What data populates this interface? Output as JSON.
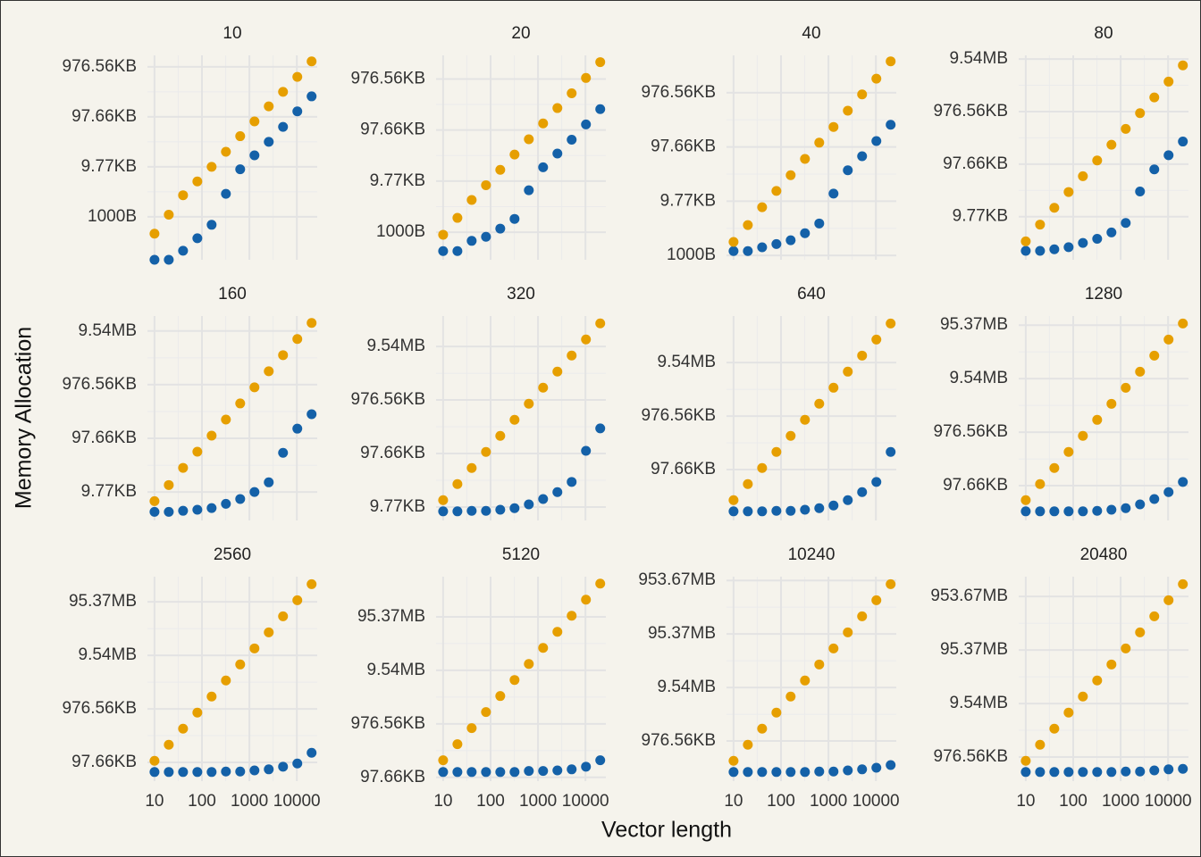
{
  "chart_data": {
    "type": "scatter",
    "x_label": "Vector length",
    "y_label": "Memory Allocation",
    "xlog": true,
    "ylog": true,
    "grid": true,
    "minor_grid": true,
    "x": [
      10,
      20,
      40,
      80,
      160,
      320,
      640,
      1280,
      2560,
      5120,
      10240,
      20480
    ],
    "xlim": [
      7.1,
      26900
    ],
    "xticks": [
      10,
      100,
      1000,
      10000
    ],
    "panels": [
      {
        "title": "10",
        "ylim": [
          138,
          1700000
        ],
        "yticks": [
          {
            "value": 1000,
            "label": "1000B"
          },
          {
            "value": 10000,
            "label": "9.77KB"
          },
          {
            "value": 100000,
            "label": "97.66KB"
          },
          {
            "value": 1000000,
            "label": "976.56KB"
          }
        ],
        "series": [
          {
            "color": "#e69f00",
            "values": [
              460,
              1100,
              2700,
              5100,
              10000,
              20000,
              41000,
              81000,
              162000,
              316000,
              631000,
              1290000
            ]
          },
          {
            "color": "#1461a8",
            "values": [
              138,
              138,
              209,
              372,
              692,
              2884,
              8913,
              16982,
              31623,
              63096,
              128825,
              257040
            ]
          }
        ]
      },
      {
        "title": "20",
        "ylim": [
          288,
          2900000
        ],
        "yticks": [
          {
            "value": 1000,
            "label": "1000B"
          },
          {
            "value": 10000,
            "label": "9.77KB"
          },
          {
            "value": 100000,
            "label": "97.66KB"
          },
          {
            "value": 1000000,
            "label": "976.56KB"
          }
        ],
        "series": [
          {
            "color": "#e69f00",
            "values": [
              891,
              1905,
              4266,
              8318,
              16596,
              33113,
              66069,
              134896,
              269153,
              524807,
              1047129,
              2137962
            ]
          },
          {
            "color": "#1461a8",
            "values": [
              427,
              427,
              676,
              813,
              1175,
              1820,
              6607,
              18621,
              34674,
              64565,
              128825,
              257040
            ]
          }
        ]
      },
      {
        "title": "40",
        "ylim": [
          832,
          4900000
        ],
        "yticks": [
          {
            "value": 1000,
            "label": "1000B"
          },
          {
            "value": 10000,
            "label": "9.77KB"
          },
          {
            "value": 100000,
            "label": "97.66KB"
          },
          {
            "value": 1000000,
            "label": "976.56KB"
          }
        ],
        "series": [
          {
            "color": "#e69f00",
            "values": [
              1778,
              3631,
              7762,
              15488,
              30200,
              60256,
              120226,
              234423,
              467735,
              933254,
              1819701,
              3801894
            ]
          },
          {
            "color": "#1461a8",
            "values": [
              1202,
              1202,
              1413,
              1622,
              1905,
              2570,
              3890,
              13804,
              37154,
              67608,
              128825,
              257040
            ]
          }
        ]
      },
      {
        "title": "80",
        "ylim": [
          1514,
          11750000
        ],
        "yticks": [
          {
            "value": 10000,
            "label": "9.77KB"
          },
          {
            "value": 100000,
            "label": "97.66KB"
          },
          {
            "value": 1000000,
            "label": "976.56KB"
          },
          {
            "value": 10000000,
            "label": "9.54MB"
          }
        ],
        "series": [
          {
            "color": "#e69f00",
            "values": [
              3388,
              7079,
              14791,
              29512,
              58884,
              117490,
              234423,
              467735,
              933254,
              1862087,
              3715352,
              7585776
            ]
          },
          {
            "color": "#1461a8",
            "values": [
              2239,
              2239,
              2399,
              2630,
              3162,
              3802,
              5012,
              7586,
              30200,
              79433,
              147911,
              269153
            ]
          }
        ]
      },
      {
        "title": "160",
        "ylim": [
          2951,
          19000000
        ],
        "yticks": [
          {
            "value": 10000,
            "label": "9.77KB"
          },
          {
            "value": 100000,
            "label": "97.66KB"
          },
          {
            "value": 1000000,
            "label": "976.56KB"
          },
          {
            "value": 10000000,
            "label": "9.54MB"
          }
        ],
        "series": [
          {
            "color": "#e69f00",
            "values": [
              6761,
              13490,
              28184,
              56234,
              112202,
              223872,
              446684,
              891251,
              1778279,
              3548134,
              7079458,
              14125375
            ]
          },
          {
            "color": "#1461a8",
            "values": [
              4266,
              4266,
              4467,
              4677,
              5012,
              6026,
              7413,
              10000,
              15136,
              53703,
              151356,
              281838
            ]
          }
        ]
      },
      {
        "title": "320",
        "ylim": [
          5623,
          37000000
        ],
        "yticks": [
          {
            "value": 10000,
            "label": "9.77KB"
          },
          {
            "value": 100000,
            "label": "97.66KB"
          },
          {
            "value": 1000000,
            "label": "976.56KB"
          },
          {
            "value": 10000000,
            "label": "9.54MB"
          }
        ],
        "series": [
          {
            "color": "#e69f00",
            "values": [
              13490,
              26915,
              53703,
              107152,
              213796,
              426580,
              851138,
              1698244,
              3388442,
              6760830,
              13489629,
              26915348
            ]
          },
          {
            "color": "#1461a8",
            "values": [
              8318,
              8318,
              8511,
              8511,
              8913,
              9550,
              11220,
              14125,
              19055,
              29512,
              112202,
              295121
            ]
          }
        ]
      },
      {
        "title": "640",
        "ylim": [
          11220,
          74000000
        ],
        "yticks": [
          {
            "value": 100000,
            "label": "97.66KB"
          },
          {
            "value": 1000000,
            "label": "976.56KB"
          },
          {
            "value": 10000000,
            "label": "9.54MB"
          }
        ],
        "series": [
          {
            "color": "#e69f00",
            "values": [
              26915,
              53703,
              107152,
              213796,
              426580,
              851138,
              1698244,
              3388442,
              6760830,
              13489629,
              26915348,
              53703180
            ]
          },
          {
            "color": "#1461a8",
            "values": [
              16596,
              16596,
              16596,
              16982,
              16982,
              17783,
              19055,
              21380,
              26915,
              38019,
              58884,
              213796
            ]
          }
        ]
      },
      {
        "title": "1280",
        "ylim": [
          22387,
          148000000
        ],
        "yticks": [
          {
            "value": 100000,
            "label": "97.66KB"
          },
          {
            "value": 1000000,
            "label": "976.56KB"
          },
          {
            "value": 10000000,
            "label": "9.54MB"
          },
          {
            "value": 100000000,
            "label": "95.37MB"
          }
        ],
        "series": [
          {
            "color": "#e69f00",
            "values": [
              53703,
              107152,
              213796,
              426580,
              851138,
              1698244,
              3388442,
              6760830,
              13489629,
              26915348,
              53703180,
              107151931
            ]
          },
          {
            "color": "#1461a8",
            "values": [
              33113,
              33113,
              33113,
              33113,
              33113,
              33884,
              35481,
              38019,
              44668,
              56234,
              75858,
              117490
            ]
          }
        ]
      },
      {
        "title": "2560",
        "ylim": [
          44668,
          295000000
        ],
        "yticks": [
          {
            "value": 100000,
            "label": "97.66KB"
          },
          {
            "value": 1000000,
            "label": "976.56KB"
          },
          {
            "value": 10000000,
            "label": "9.54MB"
          },
          {
            "value": 100000000,
            "label": "95.37MB"
          }
        ],
        "series": [
          {
            "color": "#e69f00",
            "values": [
              107152,
              213796,
              426580,
              851138,
              1698244,
              3388442,
              6760830,
              13489629,
              26915348,
              53703180,
              107151931,
              213796209
            ]
          },
          {
            "color": "#1461a8",
            "values": [
              66069,
              66069,
              66069,
              66069,
              66069,
              67608,
              67608,
              70795,
              74131,
              83176,
              95499,
              151356
            ]
          }
        ]
      },
      {
        "title": "5120",
        "ylim": [
          85114,
          562000000
        ],
        "yticks": [
          {
            "value": 100000,
            "label": "97.66KB"
          },
          {
            "value": 1000000,
            "label": "976.56KB"
          },
          {
            "value": 10000000,
            "label": "9.54MB"
          },
          {
            "value": 100000000,
            "label": "95.37MB"
          }
        ],
        "series": [
          {
            "color": "#e69f00",
            "values": [
              208930,
              416869,
              831764,
              1659587,
              3311311,
              6606934,
              13182567,
              26302680,
              52480746,
              104712855,
              208929613,
              416869383
            ]
          },
          {
            "color": "#1461a8",
            "values": [
              125893,
              125893,
              125893,
              125893,
              125893,
              125893,
              131826,
              131826,
              134896,
              141254,
              158489,
              208930
            ]
          }
        ]
      },
      {
        "title": "10240",
        "ylim": [
          177828,
          1175000000
        ],
        "yticks": [
          {
            "value": 1000000,
            "label": "976.56KB"
          },
          {
            "value": 10000000,
            "label": "9.54MB"
          },
          {
            "value": 100000000,
            "label": "95.37MB"
          },
          {
            "value": 1000000000,
            "label": "953.67MB"
          }
        ],
        "series": [
          {
            "color": "#e69f00",
            "values": [
              426580,
              851138,
              1698244,
              3388442,
              6760830,
              13489629,
              26915348,
              53703180,
              107151931,
              213796209,
              426579519,
              851138038
            ]
          },
          {
            "color": "#1461a8",
            "values": [
              263027,
              263027,
              263027,
              263027,
              263027,
              263027,
              269153,
              269153,
              281838,
              295121,
              316228,
              354813
            ]
          }
        ]
      },
      {
        "title": "20480",
        "ylim": [
          354813,
          2344000000
        ],
        "yticks": [
          {
            "value": 1000000,
            "label": "976.56KB"
          },
          {
            "value": 10000000,
            "label": "9.54MB"
          },
          {
            "value": 100000000,
            "label": "95.37MB"
          },
          {
            "value": 1000000000,
            "label": "953.67MB"
          }
        ],
        "series": [
          {
            "color": "#e69f00",
            "values": [
              851138,
              1698244,
              3388442,
              6760830,
              13489629,
              26915348,
              53703180,
              107151931,
              213796209,
              426579519,
              851138038,
              1698243652
            ]
          },
          {
            "color": "#1461a8",
            "values": [
              524807,
              524807,
              524807,
              524807,
              524807,
              524807,
              524807,
              537032,
              537032,
              562341,
              588844,
              602560
            ]
          }
        ]
      }
    ]
  }
}
